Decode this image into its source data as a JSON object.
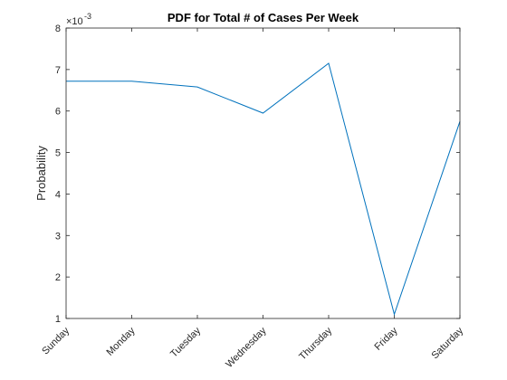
{
  "chart_data": {
    "type": "line",
    "title": "PDF for Total # of Cases Per Week",
    "xlabel": "",
    "ylabel": "Probability",
    "categories": [
      "Sunday",
      "Monday",
      "Tuesday",
      "Wednesday",
      "Thursday",
      "Friday",
      "Saturday"
    ],
    "series": [
      {
        "values": [
          6.72,
          6.72,
          6.58,
          5.95,
          7.15,
          1.1,
          5.75
        ]
      }
    ],
    "y_scale_exponent_label": "-3",
    "ylim": [
      1,
      8
    ],
    "y_ticks": [
      1,
      2,
      3,
      4,
      5,
      6,
      7,
      8
    ],
    "grid": false,
    "legend": "none",
    "line_color": "#0072BD"
  }
}
